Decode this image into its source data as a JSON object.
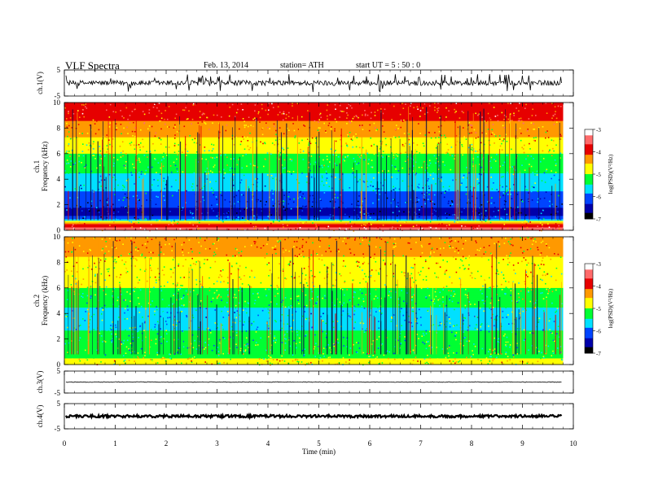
{
  "header": {
    "title": "VLF Spectra",
    "date": "Feb. 13, 2014",
    "station": "station= ATH",
    "start": "start  UT =   5 : 50 : 0"
  },
  "chart_data": [
    {
      "type": "line",
      "panel": "waveform",
      "ylabel": "ch.1(V)",
      "ylim": [
        -5,
        5
      ],
      "yticks": [
        "5",
        "-5"
      ],
      "description_values": {
        "baseline_V": 0,
        "noise_amplitude_V": 1.0,
        "spike_amplitude_V": 3.5
      }
    },
    {
      "type": "heatmap",
      "panel": "spectrogram",
      "ylabel": "Frequency (kHz)",
      "channel": "ch.1",
      "ylim": [
        0,
        10
      ],
      "yticks": [
        "0",
        "2",
        "4",
        "6",
        "8",
        "10"
      ],
      "colorbar": {
        "label": "log(PSD)(V²/Hz)",
        "range": [
          -7,
          -3
        ],
        "ticks": [
          "-3",
          "-4",
          "-5",
          "-6",
          "-7"
        ],
        "colors": [
          "#ffffff",
          "#ff6a6a",
          "#e60000",
          "#ff9900",
          "#ffff00",
          "#00ff33",
          "#00e0ff",
          "#0044ff",
          "#0000aa",
          "#000000"
        ]
      },
      "frequency_profile": [
        {
          "f": 0.0,
          "level": -3.6
        },
        {
          "f": 0.3,
          "level": -3.7
        },
        {
          "f": 0.6,
          "level": -4.3
        },
        {
          "f": 1.0,
          "level": -6.3
        },
        {
          "f": 1.5,
          "level": -6.4
        },
        {
          "f": 2.0,
          "level": -6.3
        },
        {
          "f": 3.0,
          "level": -5.9
        },
        {
          "f": 4.0,
          "level": -5.6
        },
        {
          "f": 5.0,
          "level": -5.3
        },
        {
          "f": 6.0,
          "level": -5.0
        },
        {
          "f": 7.0,
          "level": -4.7
        },
        {
          "f": 8.0,
          "level": -4.3
        },
        {
          "f": 9.0,
          "level": -4.0
        },
        {
          "f": 10.0,
          "level": -3.8
        }
      ]
    },
    {
      "type": "heatmap",
      "panel": "spectrogram",
      "ylabel": "Frequency (kHz)",
      "channel": "ch.2",
      "ylim": [
        0,
        10
      ],
      "yticks": [
        "0",
        "2",
        "4",
        "6",
        "8",
        "10"
      ],
      "colorbar": {
        "label": "log(PSD)(V²/Hz)",
        "range": [
          -7,
          -3
        ],
        "ticks": [
          "-3",
          "-4",
          "-5",
          "-6",
          "-7"
        ],
        "colors": [
          "#ffffff",
          "#ff6a6a",
          "#e60000",
          "#ff9900",
          "#ffff00",
          "#00ff33",
          "#00e0ff",
          "#0044ff",
          "#0000aa",
          "#000000"
        ]
      },
      "frequency_profile": [
        {
          "f": 0.0,
          "level": -4.9
        },
        {
          "f": 0.3,
          "level": -4.6
        },
        {
          "f": 0.6,
          "level": -5.1
        },
        {
          "f": 1.0,
          "level": -5.3
        },
        {
          "f": 2.0,
          "level": -5.3
        },
        {
          "f": 3.0,
          "level": -5.5
        },
        {
          "f": 4.0,
          "level": -5.6
        },
        {
          "f": 5.0,
          "level": -5.3
        },
        {
          "f": 6.0,
          "level": -5.0
        },
        {
          "f": 7.0,
          "level": -4.8
        },
        {
          "f": 8.0,
          "level": -4.6
        },
        {
          "f": 9.0,
          "level": -4.5
        },
        {
          "f": 10.0,
          "level": -4.4
        }
      ]
    },
    {
      "type": "line",
      "panel": "waveform",
      "ylabel": "ch.3(V)",
      "ylim": [
        -5,
        5
      ],
      "yticks": [
        "5",
        "-5"
      ],
      "description_values": {
        "baseline_V": 0,
        "noise_amplitude_V": 0.15
      }
    },
    {
      "type": "line",
      "panel": "waveform",
      "ylabel": "ch.4(V)",
      "ylim": [
        -5,
        5
      ],
      "yticks": [
        "5",
        "-5"
      ],
      "description_values": {
        "baseline_V": 0,
        "noise_amplitude_V": 0.5
      }
    }
  ],
  "xaxis": {
    "label": "Time (min)",
    "range": [
      0,
      10
    ],
    "data_end": 9.8,
    "ticks": [
      "0",
      "1",
      "2",
      "3",
      "4",
      "5",
      "6",
      "7",
      "8",
      "9",
      "10"
    ]
  }
}
